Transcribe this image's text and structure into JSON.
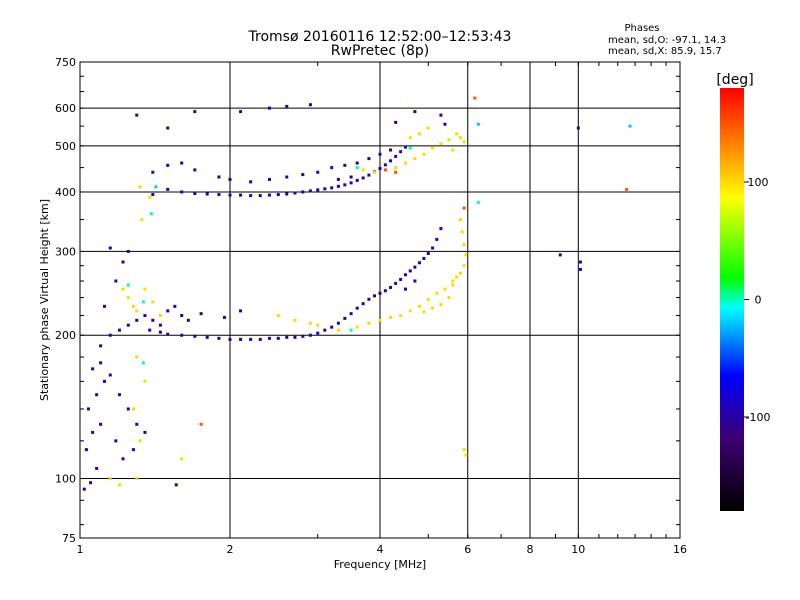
{
  "chart_data": {
    "type": "scatter",
    "title": "Tromsø 20160116 12:52:00–12:53:43",
    "subtitle": "RwPretec (8p)",
    "xlabel": "Frequency [MHz]",
    "ylabel": "Stationary phase Virtual Height [km]",
    "x_scale": "log",
    "y_scale": "log",
    "xlim": [
      1,
      16
    ],
    "ylim": [
      75,
      750
    ],
    "x_ticks": [
      1,
      2,
      4,
      6,
      8,
      10,
      16
    ],
    "x_tick_labels": [
      "1",
      "2",
      "4",
      "6",
      "8",
      "10",
      "16"
    ],
    "y_ticks": [
      75,
      100,
      200,
      300,
      400,
      500,
      600,
      750
    ],
    "y_tick_labels": [
      "75",
      "100",
      "200",
      "300",
      "400",
      "500",
      "600",
      "750"
    ],
    "grid": true,
    "phases_header": "Phases",
    "phases_line1": "mean, sd,O: -97.1, 14.3",
    "phases_line2": "mean, sd,X: 85.9, 15.7",
    "colorbar": {
      "label": "[deg]",
      "range": [
        -180,
        180
      ],
      "ticks": [
        100,
        0,
        -100
      ],
      "tick_labels": [
        "100",
        "0",
        "-100"
      ],
      "stops": [
        "#000000",
        "#3c0070",
        "#0000ff",
        "#00ffff",
        "#00ff00",
        "#ffff00",
        "#ff0000"
      ]
    },
    "series": [
      {
        "color_value": -100,
        "points": [
          [
            1.02,
            95
          ],
          [
            1.05,
            98
          ],
          [
            1.08,
            105
          ],
          [
            1.03,
            115
          ],
          [
            1.06,
            125
          ],
          [
            1.1,
            130
          ],
          [
            1.04,
            140
          ],
          [
            1.08,
            150
          ],
          [
            1.12,
            160
          ],
          [
            1.06,
            170
          ],
          [
            1.1,
            175
          ],
          [
            1.15,
            165
          ],
          [
            1.2,
            150
          ],
          [
            1.25,
            140
          ],
          [
            1.3,
            130
          ],
          [
            1.18,
            120
          ],
          [
            1.22,
            110
          ],
          [
            1.28,
            115
          ],
          [
            1.35,
            125
          ],
          [
            1.1,
            190
          ],
          [
            1.15,
            200
          ],
          [
            1.2,
            205
          ],
          [
            1.25,
            210
          ],
          [
            1.3,
            215
          ],
          [
            1.35,
            220
          ],
          [
            1.4,
            215
          ],
          [
            1.45,
            210
          ],
          [
            1.5,
            225
          ],
          [
            1.55,
            230
          ],
          [
            1.6,
            220
          ],
          [
            1.65,
            215
          ],
          [
            1.12,
            230
          ],
          [
            1.18,
            260
          ],
          [
            1.22,
            285
          ],
          [
            1.15,
            305
          ],
          [
            1.25,
            300
          ],
          [
            1.38,
            205
          ],
          [
            1.45,
            203
          ],
          [
            1.5,
            201
          ],
          [
            1.6,
            200
          ],
          [
            1.7,
            199
          ],
          [
            1.8,
            198
          ],
          [
            1.9,
            197
          ],
          [
            2.0,
            196
          ],
          [
            2.1,
            196
          ],
          [
            2.2,
            196
          ],
          [
            2.3,
            196
          ],
          [
            2.4,
            197
          ],
          [
            2.5,
            197
          ],
          [
            2.6,
            198
          ],
          [
            2.7,
            198
          ],
          [
            2.8,
            199
          ],
          [
            2.9,
            200
          ],
          [
            3.0,
            202
          ],
          [
            3.1,
            205
          ],
          [
            3.2,
            208
          ],
          [
            3.3,
            212
          ],
          [
            3.4,
            217
          ],
          [
            3.5,
            222
          ],
          [
            3.6,
            228
          ],
          [
            3.7,
            233
          ],
          [
            3.8,
            238
          ],
          [
            3.9,
            242
          ],
          [
            4.0,
            245
          ],
          [
            4.1,
            248
          ],
          [
            4.2,
            252
          ],
          [
            4.3,
            257
          ],
          [
            4.4,
            262
          ],
          [
            4.5,
            268
          ],
          [
            4.6,
            273
          ],
          [
            4.7,
            278
          ],
          [
            4.8,
            284
          ],
          [
            4.9,
            290
          ],
          [
            5.0,
            297
          ],
          [
            5.1,
            305
          ],
          [
            5.2,
            318
          ],
          [
            5.3,
            335
          ],
          [
            4.7,
            260
          ],
          [
            4.5,
            250
          ],
          [
            2.1,
            225
          ],
          [
            1.95,
            218
          ],
          [
            1.75,
            222
          ],
          [
            1.4,
            395
          ],
          [
            1.5,
            405
          ],
          [
            1.6,
            400
          ],
          [
            1.7,
            397
          ],
          [
            1.8,
            396
          ],
          [
            1.9,
            395
          ],
          [
            2.0,
            394
          ],
          [
            2.1,
            394
          ],
          [
            2.2,
            393
          ],
          [
            2.3,
            393
          ],
          [
            2.4,
            394
          ],
          [
            2.5,
            395
          ],
          [
            2.6,
            396
          ],
          [
            2.7,
            398
          ],
          [
            2.8,
            400
          ],
          [
            2.9,
            402
          ],
          [
            3.0,
            404
          ],
          [
            3.1,
            406
          ],
          [
            3.2,
            408
          ],
          [
            3.3,
            411
          ],
          [
            3.4,
            414
          ],
          [
            3.5,
            418
          ],
          [
            3.6,
            423
          ],
          [
            3.7,
            428
          ],
          [
            3.8,
            434
          ],
          [
            3.9,
            441
          ],
          [
            4.0,
            448
          ],
          [
            4.1,
            456
          ],
          [
            4.2,
            465
          ],
          [
            4.3,
            475
          ],
          [
            4.4,
            486
          ],
          [
            4.5,
            497
          ],
          [
            1.4,
            440
          ],
          [
            1.5,
            455
          ],
          [
            1.6,
            460
          ],
          [
            1.7,
            445
          ],
          [
            1.9,
            430
          ],
          [
            2.0,
            425
          ],
          [
            2.2,
            420
          ],
          [
            2.4,
            425
          ],
          [
            2.6,
            430
          ],
          [
            2.8,
            435
          ],
          [
            3.0,
            440
          ],
          [
            3.2,
            450
          ],
          [
            3.4,
            455
          ],
          [
            3.6,
            460
          ],
          [
            3.8,
            470
          ],
          [
            4.0,
            480
          ],
          [
            4.2,
            490
          ],
          [
            3.5,
            430
          ],
          [
            3.3,
            425
          ],
          [
            1.3,
            580
          ],
          [
            1.5,
            545
          ],
          [
            1.7,
            590
          ],
          [
            2.1,
            590
          ],
          [
            2.4,
            600
          ],
          [
            2.6,
            605
          ],
          [
            2.9,
            610
          ],
          [
            4.3,
            560
          ],
          [
            4.7,
            590
          ],
          [
            5.3,
            580
          ],
          [
            5.4,
            555
          ],
          [
            10.0,
            545
          ],
          [
            9.2,
            295
          ],
          [
            10.1,
            285
          ],
          [
            10.1,
            275
          ],
          [
            1.56,
            97
          ]
        ]
      },
      {
        "color_value": 100,
        "points": [
          [
            1.22,
            250
          ],
          [
            1.25,
            240
          ],
          [
            1.28,
            230
          ],
          [
            1.3,
            225
          ],
          [
            1.35,
            250
          ],
          [
            1.4,
            235
          ],
          [
            1.45,
            220
          ],
          [
            1.3,
            180
          ],
          [
            1.35,
            160
          ],
          [
            1.28,
            140
          ],
          [
            1.32,
            120
          ],
          [
            1.15,
            100
          ],
          [
            1.2,
            97
          ],
          [
            1.3,
            100
          ],
          [
            1.6,
            110
          ],
          [
            2.5,
            220
          ],
          [
            2.7,
            215
          ],
          [
            2.9,
            212
          ],
          [
            3.0,
            210
          ],
          [
            3.3,
            205
          ],
          [
            3.6,
            208
          ],
          [
            3.8,
            212
          ],
          [
            4.0,
            215
          ],
          [
            4.2,
            218
          ],
          [
            4.4,
            220
          ],
          [
            4.6,
            225
          ],
          [
            4.8,
            230
          ],
          [
            5.0,
            238
          ],
          [
            5.2,
            245
          ],
          [
            5.4,
            250
          ],
          [
            5.6,
            260
          ],
          [
            5.8,
            270
          ],
          [
            5.9,
            280
          ],
          [
            5.95,
            295
          ],
          [
            5.9,
            310
          ],
          [
            5.85,
            330
          ],
          [
            5.8,
            350
          ],
          [
            5.5,
            240
          ],
          [
            5.6,
            255
          ],
          [
            5.7,
            265
          ],
          [
            5.3,
            232
          ],
          [
            5.1,
            228
          ],
          [
            4.9,
            224
          ],
          [
            3.7,
            445
          ],
          [
            3.9,
            440
          ],
          [
            4.1,
            445
          ],
          [
            4.3,
            450
          ],
          [
            4.5,
            460
          ],
          [
            4.7,
            470
          ],
          [
            4.9,
            480
          ],
          [
            5.1,
            495
          ],
          [
            5.3,
            505
          ],
          [
            5.5,
            515
          ],
          [
            5.7,
            530
          ],
          [
            5.8,
            520
          ],
          [
            5.9,
            510
          ],
          [
            5.6,
            490
          ],
          [
            4.6,
            520
          ],
          [
            4.8,
            530
          ],
          [
            5.0,
            545
          ],
          [
            5.9,
            115
          ],
          [
            5.95,
            112
          ],
          [
            1.32,
            410
          ],
          [
            1.38,
            390
          ],
          [
            1.33,
            350
          ]
        ]
      },
      {
        "color_value": 150,
        "points": [
          [
            4.1,
            445
          ],
          [
            4.3,
            440
          ],
          [
            1.75,
            130
          ],
          [
            6.2,
            630
          ],
          [
            5.9,
            370
          ],
          [
            12.5,
            405
          ]
        ]
      },
      {
        "color_value": 0,
        "points": [
          [
            1.25,
            255
          ],
          [
            1.34,
            235
          ],
          [
            1.34,
            175
          ],
          [
            3.5,
            205
          ],
          [
            4.6,
            495
          ],
          [
            3.6,
            450
          ],
          [
            6.3,
            380
          ],
          [
            1.39,
            360
          ]
        ]
      },
      {
        "color_value": -20,
        "points": [
          [
            12.7,
            550
          ],
          [
            6.3,
            555
          ],
          [
            1.42,
            410
          ]
        ]
      }
    ]
  }
}
